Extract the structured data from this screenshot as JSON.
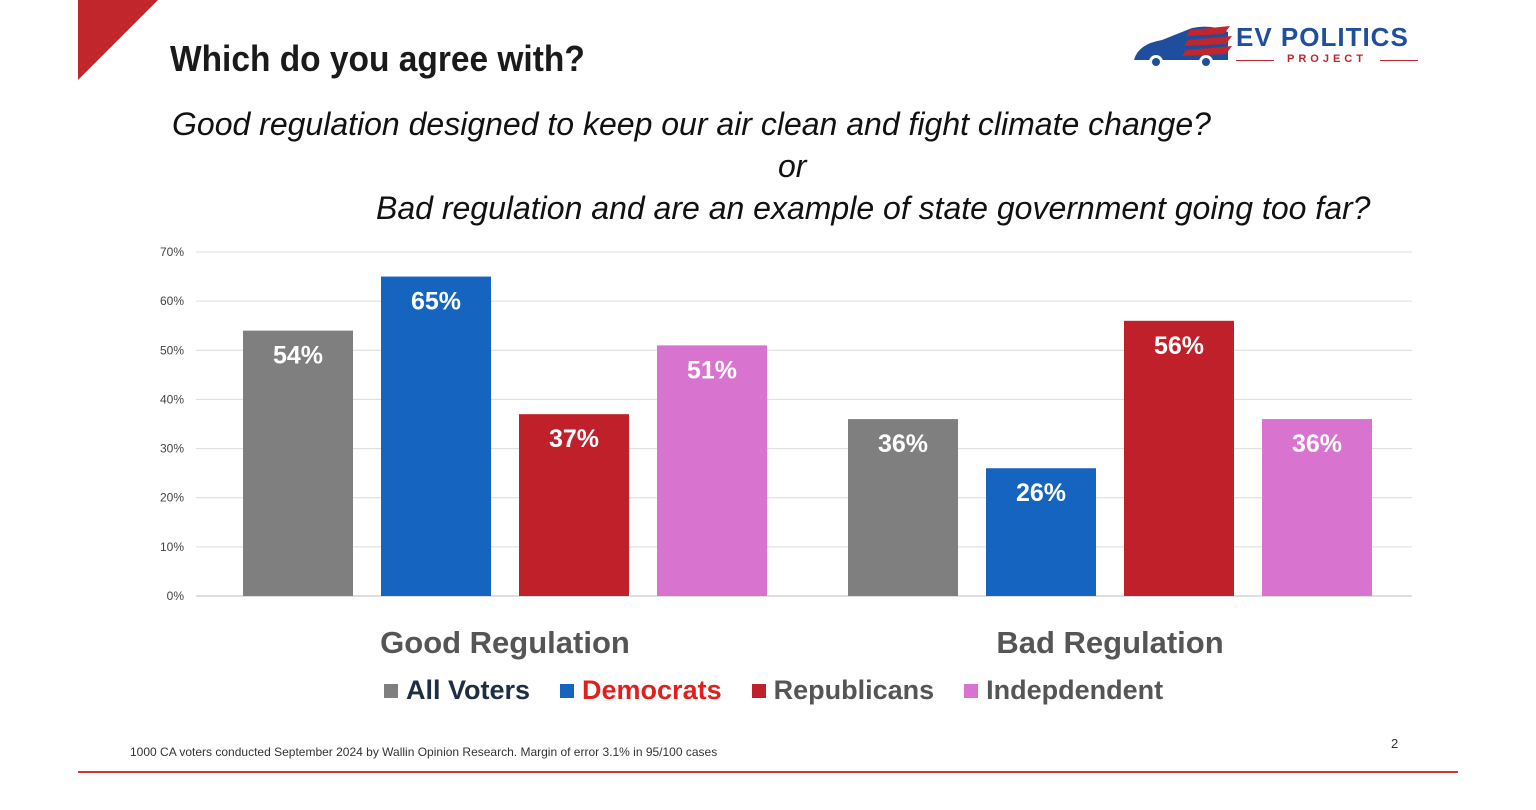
{
  "header": {
    "title": "Which do you agree with?",
    "question_line1": "Good regulation designed to keep our air clean and fight climate change?",
    "question_or": "or",
    "question_line2": "Bad regulation and are an example of state government going too far?"
  },
  "logo": {
    "name": "EV POLITICS",
    "sub": "PROJECT",
    "icon": "car-flag-icon"
  },
  "chart_data": {
    "type": "bar",
    "categories": [
      "Good Regulation",
      "Bad Regulation"
    ],
    "series": [
      {
        "name": "All Voters",
        "values": [
          54,
          36
        ],
        "color": "#7f7f7f",
        "label_color": "#1f2d45"
      },
      {
        "name": "Democrats",
        "values": [
          65,
          26
        ],
        "color": "#1565c0",
        "label_color": "#e0201f"
      },
      {
        "name": "Republicans",
        "values": [
          37,
          56
        ],
        "color": "#c0202a",
        "label_color": "#555555"
      },
      {
        "name": "Indepdendent",
        "values": [
          51,
          36
        ],
        "color": "#d873cf",
        "label_color": "#555555"
      }
    ],
    "data_labels": [
      [
        "54%",
        "36%"
      ],
      [
        "65%",
        "26%"
      ],
      [
        "37%",
        "56%"
      ],
      [
        "51%",
        "36%"
      ]
    ],
    "y_ticks": [
      "0%",
      "10%",
      "20%",
      "30%",
      "40%",
      "50%",
      "60%",
      "70%"
    ],
    "ylim": [
      0,
      70
    ],
    "grid": true,
    "legend_position": "bottom"
  },
  "footer": {
    "note": "1000 CA voters conducted September 2024 by Wallin Opinion Research.  Margin of error 3.1% in 95/100 cases",
    "page_number": "2",
    "accent_color": "#c0262c"
  }
}
